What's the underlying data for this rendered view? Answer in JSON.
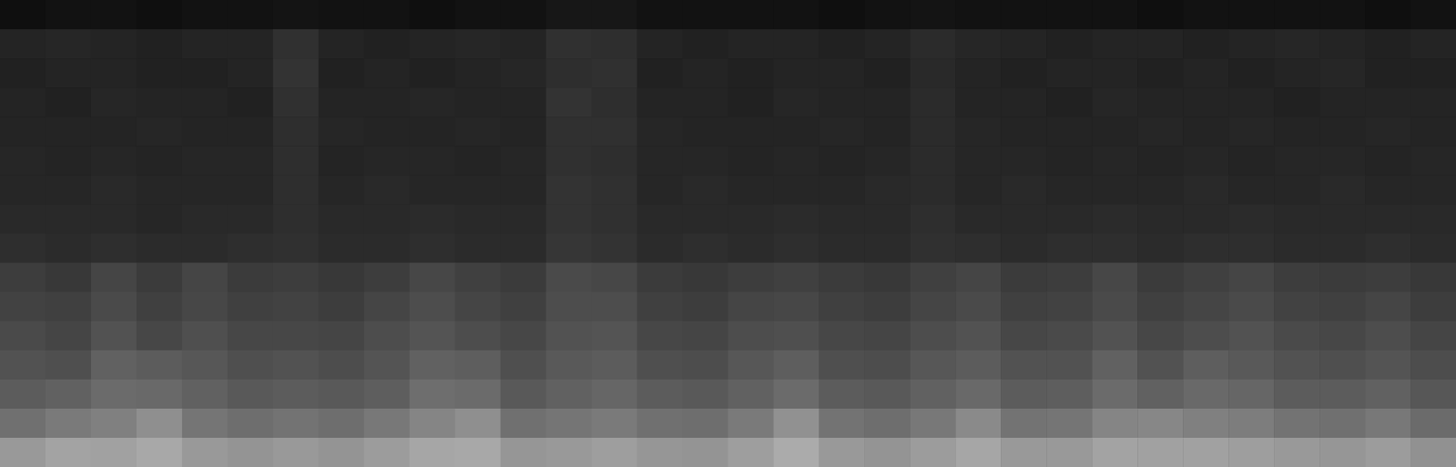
{
  "chart_data": {
    "type": "heatmap",
    "tick_labels": false,
    "zlim": [
      0,
      1
    ],
    "cells": [
      [
        0.06,
        0.07,
        0.07,
        0.06,
        0.07,
        0.07,
        0.08,
        0.07,
        0.07,
        0.06,
        0.07,
        0.07,
        0.09,
        0.09,
        0.07,
        0.07,
        0.07,
        0.07,
        0.06,
        0.07,
        0.08,
        0.07,
        0.07,
        0.07,
        0.07,
        0.06,
        0.07,
        0.07,
        0.07,
        0.07,
        0.06,
        0.07
      ],
      [
        0.14,
        0.15,
        0.14,
        0.13,
        0.14,
        0.14,
        0.19,
        0.14,
        0.13,
        0.14,
        0.15,
        0.14,
        0.19,
        0.18,
        0.14,
        0.13,
        0.14,
        0.14,
        0.13,
        0.14,
        0.17,
        0.15,
        0.14,
        0.13,
        0.14,
        0.14,
        0.13,
        0.14,
        0.15,
        0.14,
        0.13,
        0.14
      ],
      [
        0.13,
        0.14,
        0.14,
        0.13,
        0.13,
        0.14,
        0.2,
        0.13,
        0.14,
        0.13,
        0.14,
        0.15,
        0.18,
        0.19,
        0.13,
        0.14,
        0.13,
        0.14,
        0.14,
        0.13,
        0.16,
        0.14,
        0.13,
        0.14,
        0.14,
        0.13,
        0.14,
        0.13,
        0.14,
        0.15,
        0.13,
        0.13
      ],
      [
        0.14,
        0.13,
        0.15,
        0.14,
        0.14,
        0.13,
        0.19,
        0.14,
        0.14,
        0.15,
        0.14,
        0.14,
        0.2,
        0.18,
        0.14,
        0.14,
        0.13,
        0.15,
        0.14,
        0.14,
        0.17,
        0.14,
        0.14,
        0.13,
        0.15,
        0.14,
        0.14,
        0.14,
        0.13,
        0.14,
        0.14,
        0.14
      ],
      [
        0.14,
        0.14,
        0.14,
        0.15,
        0.14,
        0.14,
        0.18,
        0.15,
        0.14,
        0.14,
        0.15,
        0.14,
        0.19,
        0.19,
        0.15,
        0.14,
        0.14,
        0.14,
        0.15,
        0.14,
        0.17,
        0.15,
        0.14,
        0.14,
        0.14,
        0.15,
        0.14,
        0.15,
        0.14,
        0.14,
        0.15,
        0.14
      ],
      [
        0.15,
        0.14,
        0.15,
        0.14,
        0.15,
        0.15,
        0.18,
        0.14,
        0.15,
        0.15,
        0.14,
        0.15,
        0.19,
        0.18,
        0.15,
        0.15,
        0.14,
        0.15,
        0.14,
        0.15,
        0.17,
        0.15,
        0.15,
        0.14,
        0.15,
        0.14,
        0.15,
        0.14,
        0.15,
        0.15,
        0.14,
        0.15
      ],
      [
        0.15,
        0.15,
        0.16,
        0.15,
        0.15,
        0.15,
        0.18,
        0.15,
        0.16,
        0.15,
        0.15,
        0.15,
        0.2,
        0.19,
        0.15,
        0.16,
        0.15,
        0.15,
        0.15,
        0.16,
        0.17,
        0.15,
        0.16,
        0.15,
        0.15,
        0.15,
        0.16,
        0.15,
        0.15,
        0.16,
        0.15,
        0.15
      ],
      [
        0.16,
        0.16,
        0.16,
        0.15,
        0.16,
        0.16,
        0.18,
        0.16,
        0.16,
        0.17,
        0.16,
        0.16,
        0.2,
        0.19,
        0.16,
        0.16,
        0.16,
        0.17,
        0.16,
        0.16,
        0.18,
        0.16,
        0.16,
        0.16,
        0.17,
        0.16,
        0.16,
        0.17,
        0.16,
        0.16,
        0.16,
        0.16
      ],
      [
        0.18,
        0.17,
        0.18,
        0.17,
        0.17,
        0.18,
        0.19,
        0.17,
        0.17,
        0.18,
        0.17,
        0.17,
        0.21,
        0.2,
        0.17,
        0.18,
        0.17,
        0.18,
        0.17,
        0.17,
        0.19,
        0.18,
        0.17,
        0.18,
        0.18,
        0.17,
        0.18,
        0.18,
        0.17,
        0.17,
        0.18,
        0.17
      ],
      [
        0.24,
        0.22,
        0.27,
        0.23,
        0.27,
        0.23,
        0.24,
        0.22,
        0.24,
        0.28,
        0.25,
        0.23,
        0.29,
        0.28,
        0.23,
        0.22,
        0.24,
        0.25,
        0.23,
        0.22,
        0.25,
        0.27,
        0.23,
        0.24,
        0.28,
        0.23,
        0.25,
        0.27,
        0.24,
        0.23,
        0.24,
        0.22
      ],
      [
        0.26,
        0.25,
        0.29,
        0.25,
        0.28,
        0.25,
        0.26,
        0.24,
        0.27,
        0.3,
        0.27,
        0.25,
        0.3,
        0.3,
        0.25,
        0.24,
        0.27,
        0.28,
        0.25,
        0.24,
        0.27,
        0.29,
        0.25,
        0.26,
        0.29,
        0.25,
        0.27,
        0.29,
        0.26,
        0.25,
        0.27,
        0.24
      ],
      [
        0.29,
        0.27,
        0.32,
        0.28,
        0.31,
        0.28,
        0.28,
        0.27,
        0.3,
        0.33,
        0.3,
        0.28,
        0.32,
        0.33,
        0.28,
        0.27,
        0.3,
        0.31,
        0.28,
        0.27,
        0.3,
        0.32,
        0.28,
        0.29,
        0.32,
        0.28,
        0.3,
        0.32,
        0.29,
        0.28,
        0.3,
        0.27
      ],
      [
        0.32,
        0.31,
        0.38,
        0.36,
        0.34,
        0.31,
        0.32,
        0.3,
        0.33,
        0.38,
        0.37,
        0.31,
        0.35,
        0.36,
        0.31,
        0.3,
        0.34,
        0.37,
        0.31,
        0.3,
        0.34,
        0.36,
        0.32,
        0.32,
        0.38,
        0.32,
        0.37,
        0.35,
        0.32,
        0.31,
        0.33,
        0.3
      ],
      [
        0.36,
        0.38,
        0.42,
        0.41,
        0.38,
        0.35,
        0.36,
        0.35,
        0.37,
        0.43,
        0.42,
        0.35,
        0.38,
        0.4,
        0.36,
        0.35,
        0.38,
        0.42,
        0.36,
        0.35,
        0.38,
        0.41,
        0.36,
        0.37,
        0.42,
        0.38,
        0.41,
        0.4,
        0.36,
        0.36,
        0.38,
        0.34
      ],
      [
        0.44,
        0.48,
        0.5,
        0.56,
        0.46,
        0.43,
        0.45,
        0.43,
        0.47,
        0.52,
        0.56,
        0.44,
        0.46,
        0.48,
        0.44,
        0.43,
        0.48,
        0.57,
        0.45,
        0.43,
        0.47,
        0.54,
        0.45,
        0.46,
        0.52,
        0.53,
        0.5,
        0.49,
        0.45,
        0.44,
        0.47,
        0.42
      ],
      [
        0.6,
        0.64,
        0.63,
        0.66,
        0.6,
        0.58,
        0.6,
        0.58,
        0.61,
        0.65,
        0.66,
        0.59,
        0.6,
        0.62,
        0.59,
        0.58,
        0.62,
        0.67,
        0.6,
        0.58,
        0.61,
        0.65,
        0.6,
        0.6,
        0.64,
        0.63,
        0.63,
        0.62,
        0.6,
        0.59,
        0.61,
        0.57
      ]
    ]
  }
}
